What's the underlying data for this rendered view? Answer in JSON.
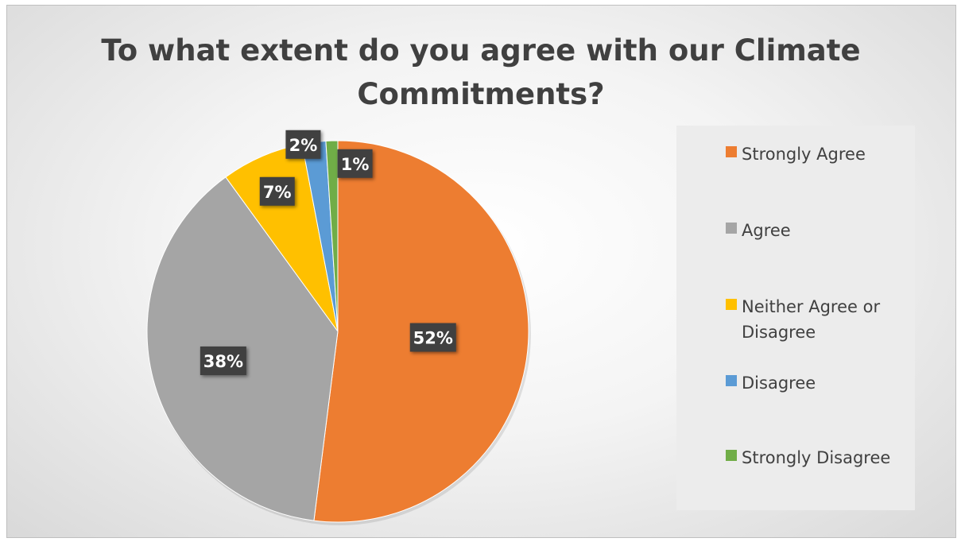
{
  "chart_data": {
    "type": "pie",
    "title": "To what extent do you agree with our Climate Commitments?",
    "slices": [
      {
        "label": "Strongly Agree",
        "value": 52,
        "display": "52%",
        "color": "#ED7D31"
      },
      {
        "label": "Agree",
        "value": 38,
        "display": "38%",
        "color": "#A5A5A5"
      },
      {
        "label": "Neither Agree or Disagree",
        "value": 7,
        "display": "7%",
        "color": "#FFC000"
      },
      {
        "label": "Disagree",
        "value": 2,
        "display": "2%",
        "color": "#5B9BD5"
      },
      {
        "label": "Strongly Disagree",
        "value": 1,
        "display": "1%",
        "color": "#70AD47"
      }
    ],
    "legend_position": "right"
  }
}
